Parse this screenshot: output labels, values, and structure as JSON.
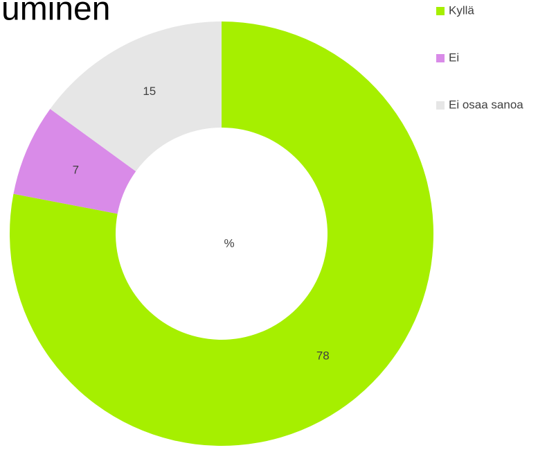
{
  "chart_data": {
    "type": "donut",
    "title": "uminen",
    "center_label": "%",
    "categories": [
      "Kyllä",
      "Ei",
      "Ei osaa sanoa"
    ],
    "values": [
      78,
      7,
      15
    ],
    "colors": [
      "#a6ef00",
      "#d98be8",
      "#e6e6e6"
    ],
    "legend": "top-right"
  }
}
